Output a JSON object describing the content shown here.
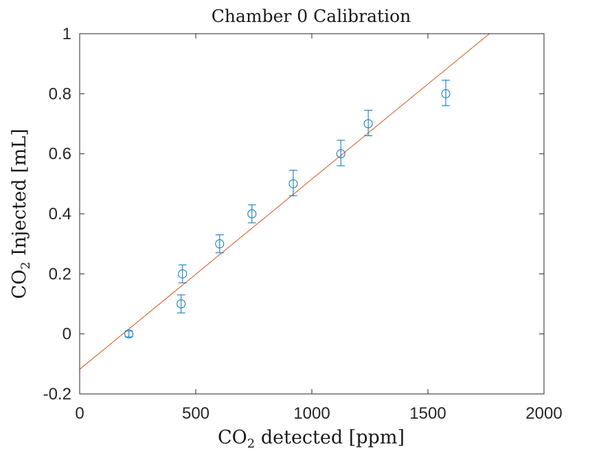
{
  "chart_data": {
    "type": "scatter",
    "title": "Chamber 0 Calibration",
    "xlabel": {
      "main": "CO",
      "subscript": "2",
      "rest": " detected [ppm]"
    },
    "ylabel": {
      "main": "CO",
      "subscript": "2",
      "rest": " Injected [mL]"
    },
    "xlim": [
      0,
      2000
    ],
    "ylim": [
      -0.2,
      1
    ],
    "xticks": [
      "0",
      "500",
      "1000",
      "1500",
      "2000"
    ],
    "xtick_values": [
      0,
      500,
      1000,
      1500,
      2000
    ],
    "yticks": [
      "-0.2",
      "0",
      "0.2",
      "0.4",
      "0.6",
      "0.8",
      "1"
    ],
    "ytick_values": [
      -0.2,
      0,
      0.2,
      0.4,
      0.6,
      0.8,
      1
    ],
    "grid": false,
    "colors": {
      "points": "#0072BD",
      "fit": "#D95319",
      "axes": "#262626"
    },
    "series": [
      {
        "type": "errorbar",
        "x": [
          212,
          437,
          443,
          603,
          742,
          920,
          1125,
          1243,
          1577
        ],
        "y": [
          0,
          0.1,
          0.2,
          0.3,
          0.4,
          0.5,
          0.6,
          0.7,
          0.8
        ],
        "err_low": [
          0.01,
          0.03,
          0.03,
          0.03,
          0.03,
          0.04,
          0.04,
          0.04,
          0.04
        ],
        "err_high": [
          0.01,
          0.03,
          0.03,
          0.03,
          0.03,
          0.045,
          0.045,
          0.045,
          0.045
        ]
      },
      {
        "type": "line",
        "x": [
          0,
          1765
        ],
        "y": [
          -0.118,
          1
        ]
      }
    ]
  }
}
